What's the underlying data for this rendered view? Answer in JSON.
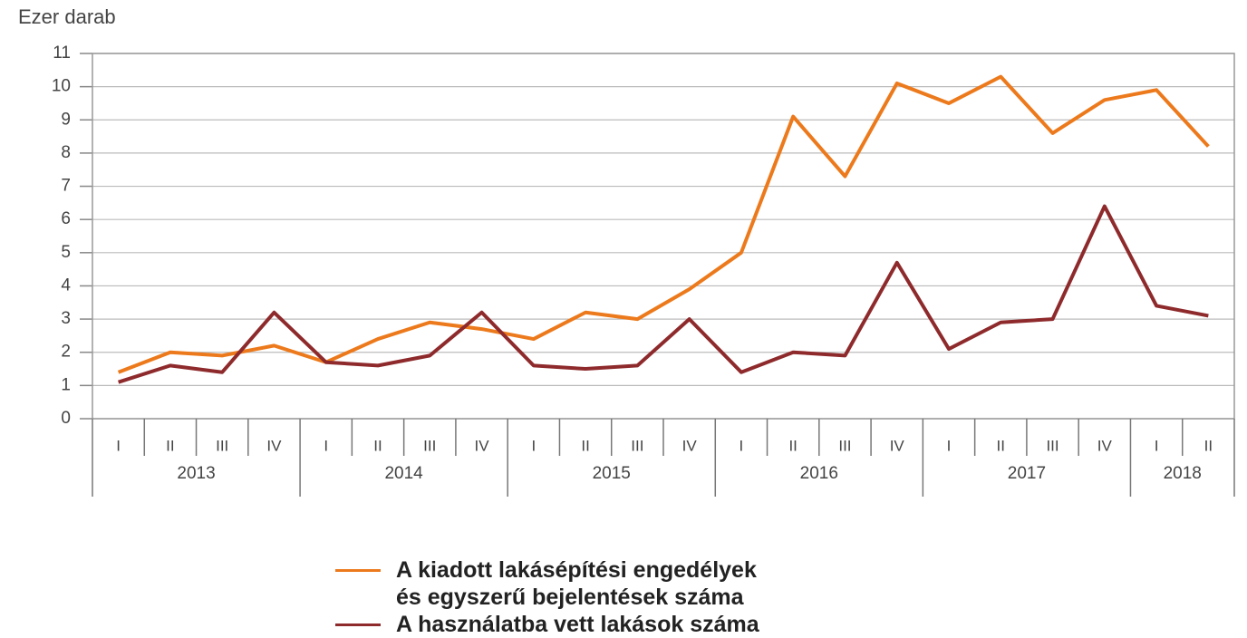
{
  "chart_data": {
    "type": "line",
    "y_label": "Ezer darab",
    "categories": [
      [
        "2013",
        "I"
      ],
      [
        "2013",
        "II"
      ],
      [
        "2013",
        "III"
      ],
      [
        "2013",
        "IV"
      ],
      [
        "2014",
        "I"
      ],
      [
        "2014",
        "II"
      ],
      [
        "2014",
        "III"
      ],
      [
        "2014",
        "IV"
      ],
      [
        "2015",
        "I"
      ],
      [
        "2015",
        "II"
      ],
      [
        "2015",
        "III"
      ],
      [
        "2015",
        "IV"
      ],
      [
        "2016",
        "I"
      ],
      [
        "2016",
        "II"
      ],
      [
        "2016",
        "III"
      ],
      [
        "2016",
        "IV"
      ],
      [
        "2017",
        "I"
      ],
      [
        "2017",
        "II"
      ],
      [
        "2017",
        "III"
      ],
      [
        "2017",
        "IV"
      ],
      [
        "2018",
        "I"
      ],
      [
        "2018",
        "II"
      ]
    ],
    "series": [
      {
        "name": "A kiadott lakásépítési engedélyek\nés egyszerű bejelentések száma",
        "color": "#ec7a1c",
        "values": [
          1.4,
          2.0,
          1.9,
          2.2,
          1.7,
          2.4,
          2.9,
          2.7,
          2.4,
          3.2,
          3.0,
          3.9,
          5.0,
          9.1,
          7.3,
          10.1,
          9.5,
          10.3,
          8.6,
          9.6,
          9.9,
          8.2
        ]
      },
      {
        "name": "A használatba vett lakások száma",
        "color": "#8e2a2c",
        "values": [
          1.1,
          1.6,
          1.4,
          3.2,
          1.7,
          1.6,
          1.9,
          3.2,
          1.6,
          1.5,
          1.6,
          3.0,
          1.4,
          2.0,
          1.9,
          4.7,
          2.1,
          2.9,
          3.0,
          6.4,
          3.4,
          3.1
        ]
      }
    ],
    "ylim": [
      0,
      11
    ],
    "yticks": [
      0,
      1,
      2,
      3,
      4,
      5,
      6,
      7,
      8,
      9,
      10,
      11
    ],
    "grid": true
  }
}
